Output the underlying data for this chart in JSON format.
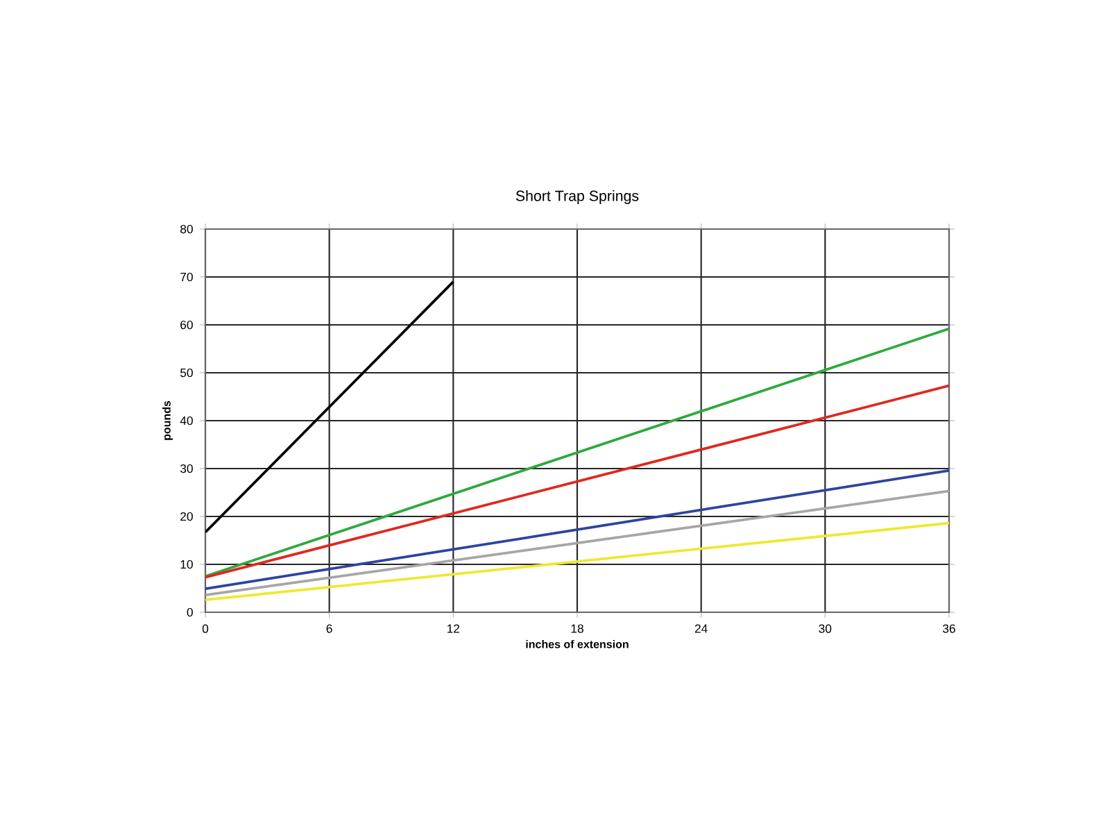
{
  "chart_data": {
    "type": "line",
    "title": "Short Trap Springs",
    "xlabel": "inches of extension",
    "ylabel": "pounds",
    "xlim": [
      0,
      36
    ],
    "ylim": [
      0,
      80
    ],
    "xticks": [
      0,
      6,
      12,
      18,
      24,
      30,
      36
    ],
    "yticks": [
      0,
      10,
      20,
      30,
      40,
      50,
      60,
      70,
      80
    ],
    "grid": true,
    "marker": "none",
    "line_style": "solid",
    "series": [
      {
        "color": "#000000",
        "x": [
          0,
          12
        ],
        "values": [
          16.7,
          69
        ]
      },
      {
        "color": "#2eaa3e",
        "x": [
          0,
          36
        ],
        "values": [
          7.5,
          59.2
        ]
      },
      {
        "color": "#e0281e",
        "x": [
          0,
          36
        ],
        "values": [
          7.3,
          47.3
        ]
      },
      {
        "color": "#2e44a0",
        "x": [
          0,
          36
        ],
        "values": [
          4.9,
          29.6
        ]
      },
      {
        "color": "#a6a6a6",
        "x": [
          0,
          36
        ],
        "values": [
          3.6,
          25.3
        ]
      },
      {
        "color": "#f0e830",
        "x": [
          0,
          36
        ],
        "values": [
          2.6,
          18.6
        ]
      }
    ]
  }
}
